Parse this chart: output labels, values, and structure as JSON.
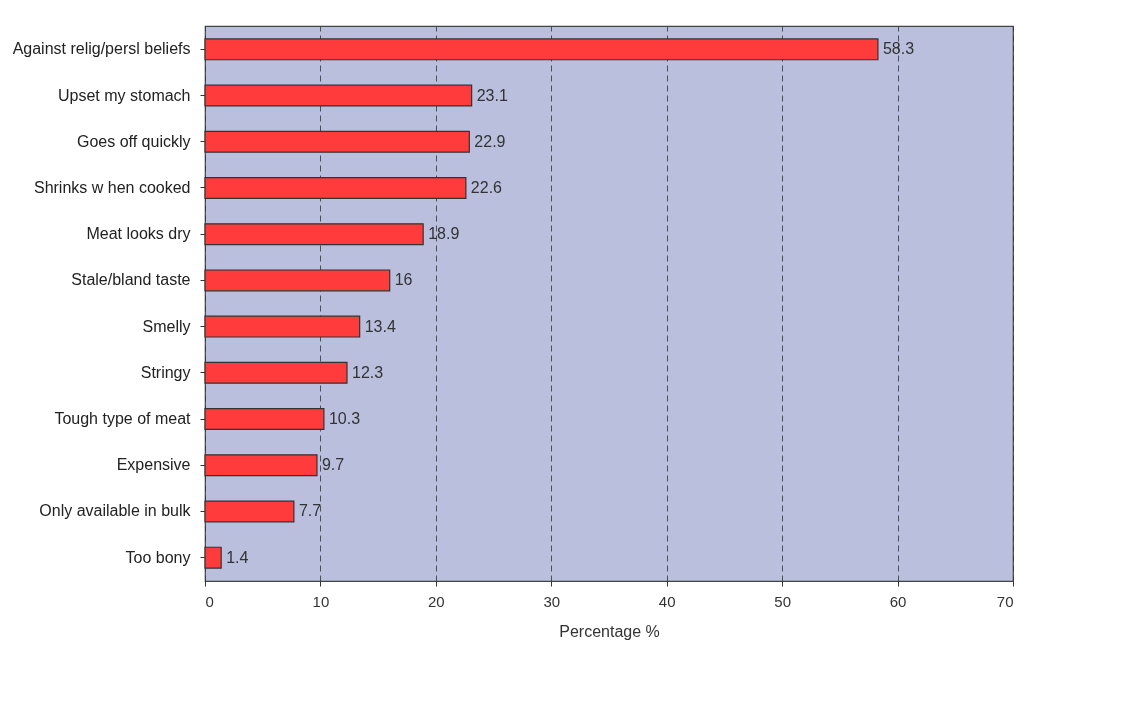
{
  "chart_data": {
    "type": "bar",
    "orientation": "horizontal",
    "categories": [
      "Against relig/persl beliefs",
      "Upset my stomach",
      "Goes off quickly",
      "Shrinks w hen cooked",
      "Meat looks dry",
      "Stale/bland taste",
      "Smelly",
      "Stringy",
      "Tough type of meat",
      "Expensive",
      "Only available in bulk",
      "Too bony"
    ],
    "values": [
      58.3,
      23.1,
      22.9,
      22.6,
      18.9,
      16,
      13.4,
      12.3,
      10.3,
      9.7,
      7.7,
      1.4
    ],
    "color": "#ff3b3b",
    "xlim": [
      0,
      70
    ],
    "xticks": [
      0,
      10,
      20,
      30,
      40,
      50,
      60,
      70
    ],
    "xlabel": "Percentage %",
    "grid": "x",
    "data_labels": true
  }
}
